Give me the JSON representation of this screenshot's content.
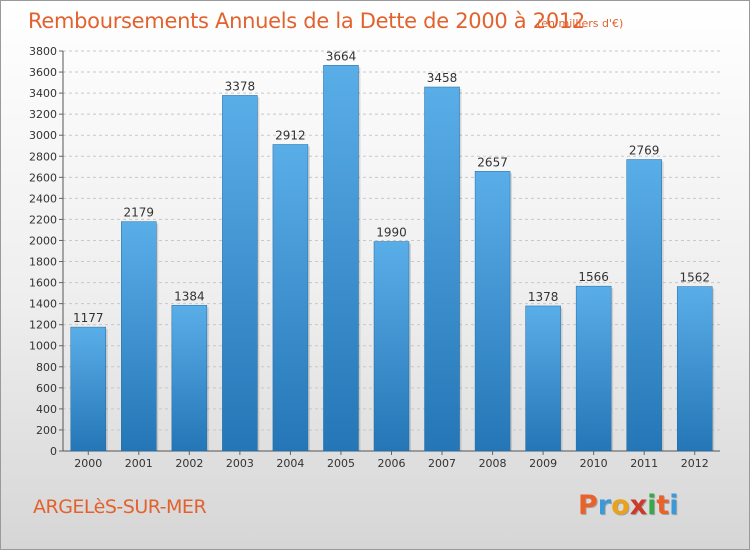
{
  "header": {
    "title": "Remboursements Annuels de la Dette de 2000 à 2012",
    "unit": "(en milliers d'€)"
  },
  "footer": {
    "city": "ARGELèS-SUR-MER",
    "logo_text": "Proxiti"
  },
  "colors": {
    "title": "#e2622e",
    "bar_top": "#5aaee8",
    "bar_bottom": "#2476b6",
    "logo_letters": [
      "#e8622a",
      "#3a9ad9",
      "#e8a21b",
      "#cc3a2a",
      "#3aa84a",
      "#e8622a",
      "#3a9ad9"
    ]
  },
  "chart_data": {
    "type": "bar",
    "title": "Remboursements Annuels de la Dette de 2000 à 2012",
    "subtitle": "(en milliers d'€)",
    "xlabel": "",
    "ylabel": "",
    "categories": [
      "2000",
      "2001",
      "2002",
      "2003",
      "2004",
      "2005",
      "2006",
      "2007",
      "2008",
      "2009",
      "2010",
      "2011",
      "2012"
    ],
    "values": [
      1177,
      2179,
      1384,
      3378,
      2912,
      3664,
      1990,
      3458,
      2657,
      1378,
      1566,
      2769,
      1562
    ],
    "value_labels": [
      "1177",
      "2179",
      "1384",
      "3378",
      "2912",
      "3664",
      "1990",
      "3458",
      "2657",
      "1378",
      "1566",
      "2769",
      "1562"
    ],
    "ylim": [
      0,
      3800
    ],
    "yticks": [
      0,
      200,
      400,
      600,
      800,
      1000,
      1200,
      1400,
      1600,
      1800,
      2000,
      2200,
      2400,
      2600,
      2800,
      3000,
      3200,
      3400,
      3600,
      3800
    ],
    "grid": true,
    "legend": "none"
  }
}
